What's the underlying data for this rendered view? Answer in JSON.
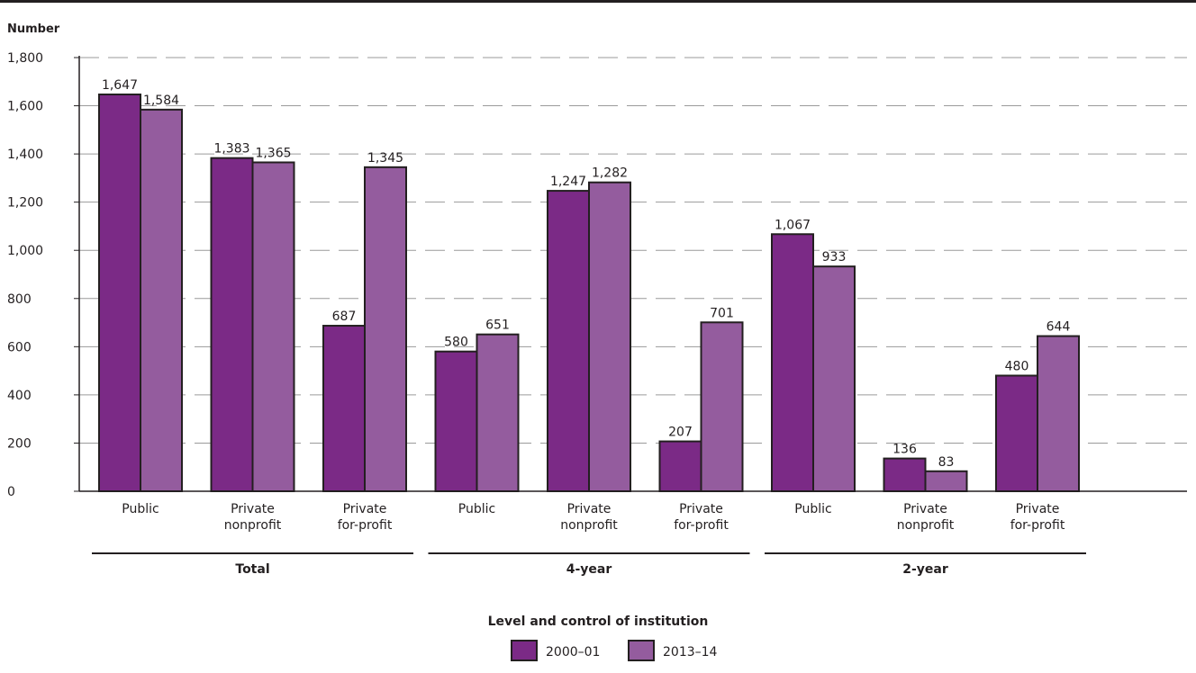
{
  "chart_data": {
    "type": "bar",
    "ylabel": "Number",
    "xlabel": "Level and control of institution",
    "ylim": [
      0,
      1800
    ],
    "yticks": [
      0,
      200,
      400,
      600,
      800,
      1000,
      1200,
      1400,
      1600,
      1800
    ],
    "ytick_labels": [
      "0",
      "200",
      "400",
      "600",
      "800",
      "1,000",
      "1,200",
      "1,400",
      "1,600",
      "1,800"
    ],
    "grid": true,
    "legend_position": "bottom-center",
    "groups": [
      {
        "label": "Total",
        "categories": [
          [
            "Public"
          ],
          [
            "Private",
            "nonprofit"
          ],
          [
            "Private",
            "for-profit"
          ]
        ]
      },
      {
        "label": "4-year",
        "categories": [
          [
            "Public"
          ],
          [
            "Private",
            "nonprofit"
          ],
          [
            "Private",
            "for-profit"
          ]
        ]
      },
      {
        "label": "2-year",
        "categories": [
          [
            "Public"
          ],
          [
            "Private",
            "nonprofit"
          ],
          [
            "Private",
            "for-profit"
          ]
        ]
      }
    ],
    "series": [
      {
        "name": "2000–01",
        "color": "#7b2a86",
        "values": [
          1647,
          1383,
          687,
          580,
          1247,
          207,
          1067,
          136,
          480
        ],
        "labels": [
          "1,647",
          "1,383",
          "687",
          "580",
          "1,247",
          "207",
          "1,067",
          "136",
          "480"
        ]
      },
      {
        "name": "2013–14",
        "color": "#945c9e",
        "values": [
          1584,
          1365,
          1345,
          651,
          1282,
          701,
          933,
          83,
          644
        ],
        "labels": [
          "1,584",
          "1,365",
          "1,345",
          "651",
          "1,282",
          "701",
          "933",
          "83",
          "644"
        ]
      }
    ]
  }
}
